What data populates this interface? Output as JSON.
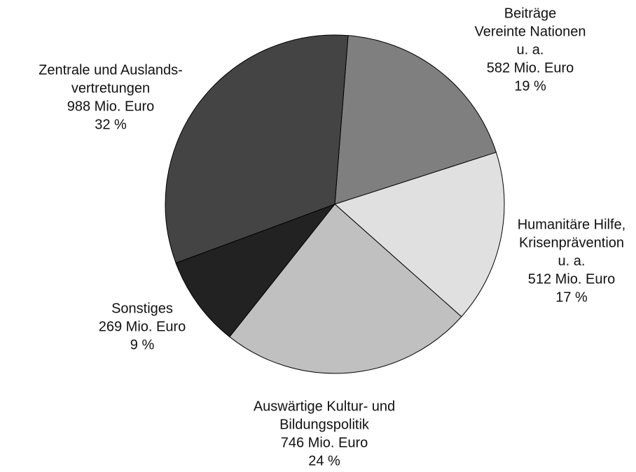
{
  "chart_data": {
    "type": "pie",
    "categories": [
      [
        "Beiträge",
        "Vereinte Nationen",
        "u. a."
      ],
      [
        "Humanitäre Hilfe,",
        "Krisenprävention",
        "u. a."
      ],
      [
        "Auswärtige Kultur- und",
        "Bildungspolitik"
      ],
      [
        "Sonstiges"
      ],
      [
        "Zentrale und Auslands-",
        "vertretungen"
      ]
    ],
    "values": [
      582,
      512,
      746,
      269,
      988
    ],
    "value_labels": [
      "582 Mio. Euro",
      "512 Mio. Euro",
      "746 Mio. Euro",
      "269 Mio. Euro",
      "988 Mio. Euro"
    ],
    "percentages": [
      19,
      17,
      24,
      9,
      32
    ],
    "percentage_labels": [
      "19 %",
      "17 %",
      "24 %",
      "9 %",
      "32 %"
    ],
    "colors": [
      "#7f7f7f",
      "#e0e0e0",
      "#c0c0c0",
      "#222222",
      "#444444"
    ]
  }
}
